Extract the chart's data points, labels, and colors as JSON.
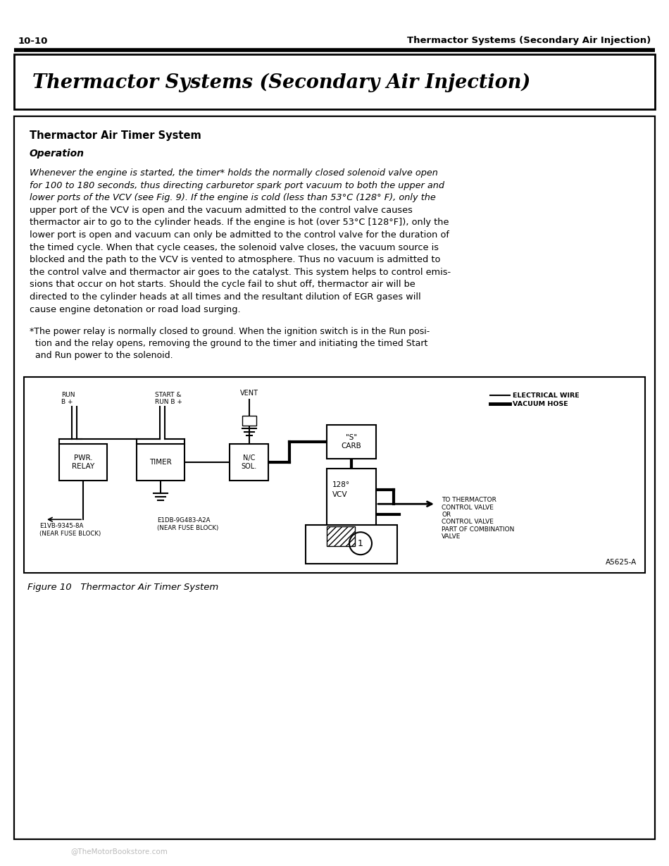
{
  "page_num": "10-10",
  "header_title": "Thermactor Systems (Secondary Air Injection)",
  "main_title": "Thermactor Systems (Secondary Air Injection)",
  "section_title": "Thermactor Air Timer System",
  "subsection": "Operation",
  "body_lines": [
    "Whenever the engine is started, the timer* holds the normally closed solenoid valve open",
    "for 100 to 180 seconds, thus directing carburetor spark port vacuum to both the upper and",
    "lower ports of the VCV (see Fig. 9). If the engine is cold (less than 53°C (128° F), only the",
    "upper port of the VCV is open and the vacuum admitted to the control valve causes",
    "thermactor air to go to the cylinder heads. If the engine is hot (over 53°C [128°F]), only the",
    "lower port is open and vacuum can only be admitted to the control valve for the duration of",
    "the timed cycle. When that cycle ceases, the solenoid valve closes, the vacuum source is",
    "blocked and the path to the VCV is vented to atmosphere. Thus no vacuum is admitted to",
    "the control valve and thermactor air goes to the catalyst. This system helps to control emis-",
    "sions that occur on hot starts. Should the cycle fail to shut off, thermactor air will be",
    "directed to the cylinder heads at all times and the resultant dilution of EGR gases will",
    "cause engine detonation or road load surging."
  ],
  "body_italic_lines": [
    0,
    1,
    2
  ],
  "fn_lines": [
    "*The power relay is normally closed to ground. When the ignition switch is in the Run posi-",
    "  tion and the relay opens, removing the ground to the timer and initiating the timed Start",
    "  and Run power to the solenoid."
  ],
  "figure_caption": "Figure 10   Thermactor Air Timer System",
  "diagram_label": "A5625-A",
  "watermark": "@TheMotorBookstore.com",
  "bg_color": "#ffffff",
  "text_color": "#000000"
}
